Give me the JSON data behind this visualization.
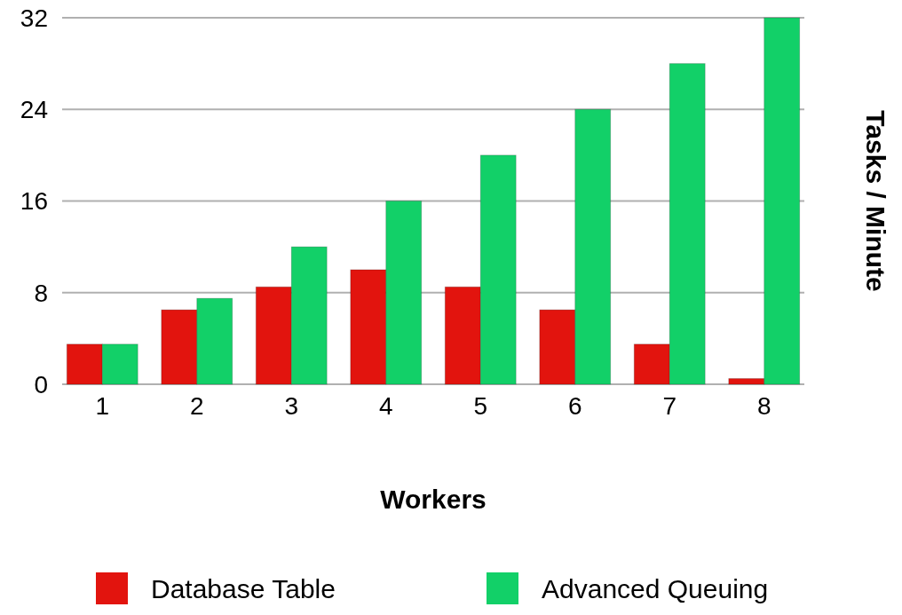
{
  "chart_data": {
    "type": "bar",
    "xlabel": "Workers",
    "ylabel": "Tasks / Minute",
    "categories": [
      "1",
      "2",
      "3",
      "4",
      "5",
      "6",
      "7",
      "8"
    ],
    "series": [
      {
        "name": "Database Table",
        "color": "#e2140e",
        "values": [
          3.5,
          6.5,
          8.5,
          10,
          8.5,
          6.5,
          3.5,
          0.5
        ]
      },
      {
        "name": "Advanced Queuing",
        "color": "#12d068",
        "values": [
          3.5,
          7.5,
          12,
          16,
          20,
          24,
          28,
          32
        ]
      }
    ],
    "ylim": [
      0,
      32
    ],
    "yticks": [
      0,
      8,
      16,
      24,
      32
    ],
    "grid": "y",
    "legend": "bottom"
  }
}
